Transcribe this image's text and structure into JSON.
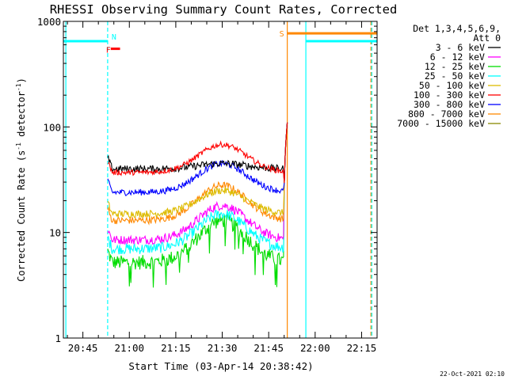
{
  "chart_data": {
    "type": "line",
    "title": "RHESSI Observing Summary Count Rates, Corrected",
    "xlabel": "Start Time (03-Apr-14 20:38:42)",
    "ylabel_main": "Corrected Count Rate (s",
    "ylabel_sup1": "-1",
    "ylabel_mid": " detector",
    "ylabel_sup2": "-1",
    "ylabel_end": ")",
    "x_tick_labels": [
      "20:45",
      "21:00",
      "21:15",
      "21:30",
      "21:45",
      "22:00",
      "22:15"
    ],
    "x_ticks_min": [
      45,
      60,
      75,
      90,
      105,
      120,
      135
    ],
    "xlim_min": [
      38.7,
      140
    ],
    "y_tick_labels": [
      "1",
      "10",
      "100",
      "1000"
    ],
    "y_ticks": [
      1,
      10,
      100,
      1000
    ],
    "ylim": [
      1,
      1000
    ],
    "yscale": "log",
    "legend_header": [
      "Det 1,3,4,5,6,9,",
      "Att 0"
    ],
    "legend_entries": [
      {
        "label": "3 - 6 keV",
        "color": "#000000"
      },
      {
        "label": "6 - 12 keV",
        "color": "#ff00ff"
      },
      {
        "label": "12 - 25 keV",
        "color": "#00dd00"
      },
      {
        "label": "25 - 50 keV",
        "color": "#00ffff"
      },
      {
        "label": "50 - 100 keV",
        "color": "#ddbb00"
      },
      {
        "label": "100 - 300 keV",
        "color": "#ff0000"
      },
      {
        "label": "300 - 800 keV",
        "color": "#0000ff"
      },
      {
        "label": "800 - 7000 keV",
        "color": "#ff8800"
      },
      {
        "label": "7000 - 15000 keV",
        "color": "#888800"
      }
    ],
    "data_start_min": 53,
    "data_end_min": 111,
    "series": [
      {
        "name": "3 - 6 keV",
        "color": "#000000",
        "base": 40,
        "peak": 45,
        "noise": 0.08
      },
      {
        "name": "6 - 12 keV",
        "color": "#ff00ff",
        "base": 8.5,
        "peak": 18,
        "noise": 0.1
      },
      {
        "name": "12 - 25 keV",
        "color": "#00dd00",
        "base": 5.2,
        "peak": 13,
        "noise": 0.16
      },
      {
        "name": "25 - 50 keV",
        "color": "#00ffff",
        "base": 7,
        "peak": 15,
        "noise": 0.12
      },
      {
        "name": "50 - 100 keV",
        "color": "#ddbb00",
        "base": 15,
        "peak": 25,
        "noise": 0.08
      },
      {
        "name": "100 - 300 keV",
        "color": "#ff0000",
        "base": 37,
        "peak": 68,
        "noise": 0.06
      },
      {
        "name": "300 - 800 keV",
        "color": "#0000ff",
        "base": 24,
        "peak": 45,
        "noise": 0.07
      },
      {
        "name": "800 - 7000 keV",
        "color": "#ff8800",
        "base": 13,
        "peak": 28,
        "noise": 0.08
      }
    ],
    "flag_segments": [
      {
        "label": "",
        "color": "#00ffff",
        "start_min": 38.7,
        "end_min": 53,
        "value": 650
      },
      {
        "label": "",
        "color": "#00ffff",
        "start_min": 117,
        "end_min": 140,
        "value": 650
      },
      {
        "label": "S",
        "color": "#ff8800",
        "start_min": 111,
        "end_min": 140,
        "value": 770
      },
      {
        "label": "F",
        "color": "#ff0000",
        "start_min": 54,
        "end_min": 57,
        "value": 550
      },
      {
        "label": "N",
        "color": "#00ffff",
        "start_min": 53,
        "end_min": 53,
        "value": 650
      }
    ],
    "vertical_lines": [
      {
        "color": "#00ffff",
        "min": 39.5,
        "dashed": false
      },
      {
        "color": "#00ffff",
        "min": 53,
        "dashed": true
      },
      {
        "color": "#ff8800",
        "min": 111,
        "dashed": false
      },
      {
        "color": "#00ffff",
        "min": 117,
        "dashed": false
      },
      {
        "color": "#ff8800",
        "min": 138,
        "dashed": true
      },
      {
        "color": "#00ffff",
        "min": 138.3,
        "dashed": true
      }
    ],
    "timestamp": "22-Oct-2021 02:10"
  }
}
